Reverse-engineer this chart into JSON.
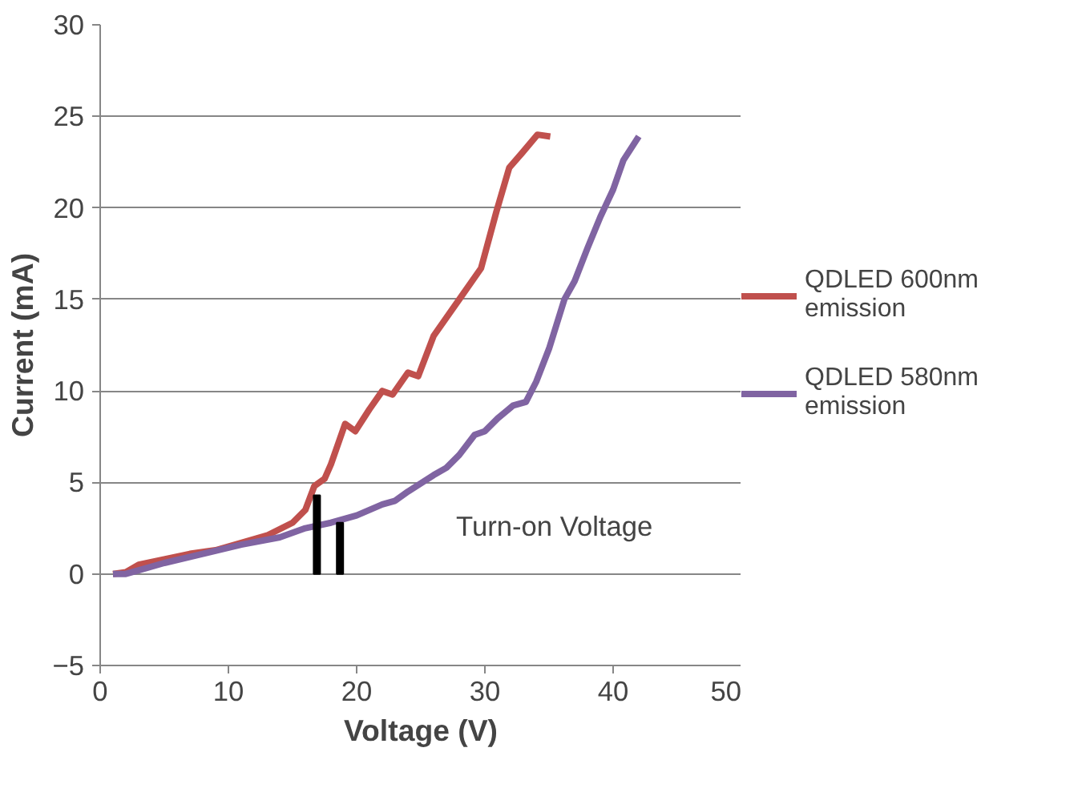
{
  "chart_data": {
    "type": "line",
    "xlabel": "Voltage (V)",
    "ylabel": "Current (mA)",
    "xlim": [
      0,
      50
    ],
    "xticks": [
      0,
      10,
      20,
      30,
      40,
      50
    ],
    "ylim": [
      -5,
      30
    ],
    "yticks": [
      -5,
      0,
      5,
      10,
      15,
      20,
      25,
      30
    ],
    "grid": "y",
    "legend": "right",
    "line_style": "solid",
    "marker": "none",
    "series": [
      {
        "name": "QDLED 600nm emission",
        "color": "#c0504d",
        "x": [
          1,
          2,
          3,
          5,
          7,
          9,
          11,
          13,
          15,
          16,
          16.7,
          17.5,
          18,
          19.1,
          19.9,
          21,
          22,
          22.8,
          24,
          24.8,
          26,
          28,
          29.7,
          30.9,
          31.9,
          32.9,
          34.1,
          35.1
        ],
        "values": [
          0,
          0.1,
          0.5,
          0.8,
          1.1,
          1.3,
          1.7,
          2.1,
          2.8,
          3.5,
          4.8,
          5.2,
          6,
          8.2,
          7.8,
          9,
          10,
          9.8,
          11,
          10.8,
          13,
          15,
          16.7,
          19.8,
          22.2,
          23,
          24,
          23.9
        ]
      },
      {
        "name": "QDLED 580nm emission",
        "color": "#8064a2",
        "x": [
          1,
          2,
          3,
          5,
          8,
          11,
          14,
          16,
          18,
          20,
          22,
          23,
          24,
          26,
          27,
          28,
          29.2,
          30,
          31,
          32.2,
          33.2,
          34,
          35,
          36.2,
          37,
          38,
          39,
          40,
          40.8,
          42
        ],
        "values": [
          0,
          0,
          0.2,
          0.6,
          1.1,
          1.6,
          2,
          2.5,
          2.8,
          3.2,
          3.8,
          4,
          4.5,
          5.4,
          5.8,
          6.5,
          7.6,
          7.8,
          8.5,
          9.2,
          9.4,
          10.5,
          12.3,
          15,
          16,
          17.8,
          19.5,
          21,
          22.6,
          23.9
        ]
      },
      {
        "type": "bar",
        "color": "#000000",
        "x": [
          16.9,
          18.7
        ],
        "values": [
          4.3,
          2.8
        ]
      }
    ],
    "annotations": [
      "Turn-on Voltage"
    ]
  }
}
